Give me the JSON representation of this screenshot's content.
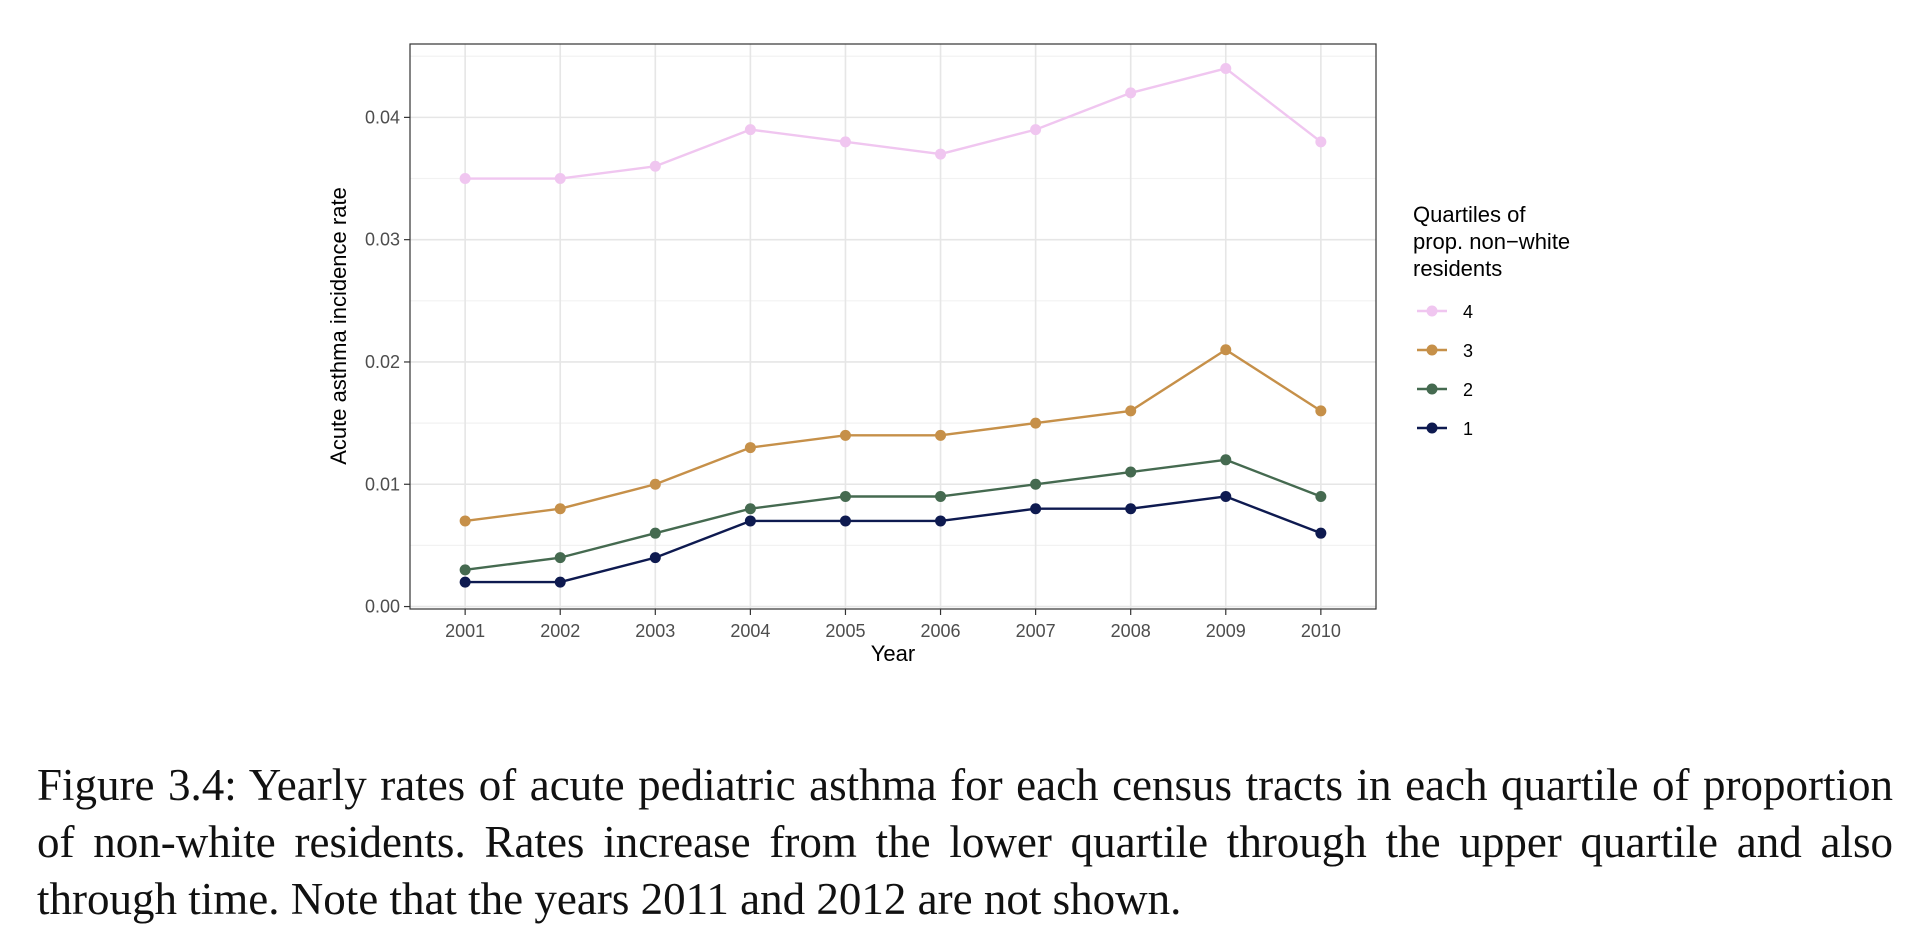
{
  "chart_data": {
    "type": "line",
    "xlabel": "Year",
    "ylabel": "Acute asthma incidence rate",
    "x": [
      2001,
      2002,
      2003,
      2004,
      2005,
      2006,
      2007,
      2008,
      2009,
      2010
    ],
    "xlim": [
      2000.42,
      2010.58
    ],
    "ylim": [
      -0.0002,
      0.046
    ],
    "yticks": [
      0.0,
      0.01,
      0.02,
      0.03,
      0.04
    ],
    "ytick_labels": [
      "0.00",
      "0.01",
      "0.02",
      "0.03",
      "0.04"
    ],
    "xtick_labels": [
      "2001",
      "2002",
      "2003",
      "2004",
      "2005",
      "2006",
      "2007",
      "2008",
      "2009",
      "2010"
    ],
    "grid": true,
    "legend": {
      "title": "Quartiles of\nprop. non−white\nresidents",
      "position": "right"
    },
    "series": [
      {
        "name": "4",
        "color": "#F0C6F0",
        "values": [
          0.035,
          0.035,
          0.036,
          0.039,
          0.038,
          0.037,
          0.039,
          0.042,
          0.044,
          0.038
        ]
      },
      {
        "name": "3",
        "color": "#C69049",
        "values": [
          0.007,
          0.008,
          0.01,
          0.013,
          0.014,
          0.014,
          0.015,
          0.016,
          0.021,
          0.016
        ]
      },
      {
        "name": "2",
        "color": "#456A50",
        "values": [
          0.003,
          0.004,
          0.006,
          0.008,
          0.009,
          0.009,
          0.01,
          0.011,
          0.012,
          0.009
        ]
      },
      {
        "name": "1",
        "color": "#0E1A50",
        "values": [
          0.002,
          0.002,
          0.004,
          0.007,
          0.007,
          0.007,
          0.008,
          0.008,
          0.009,
          0.006
        ]
      }
    ]
  },
  "caption": {
    "label": "Figure 3.4:",
    "text": "Yearly rates of acute pediatric asthma for each census tracts in each quartile of proportion of non-white residents. Rates increase from the lower quartile through the upper quartile and also through time. Note that the years 2011 and 2012 are not shown."
  }
}
